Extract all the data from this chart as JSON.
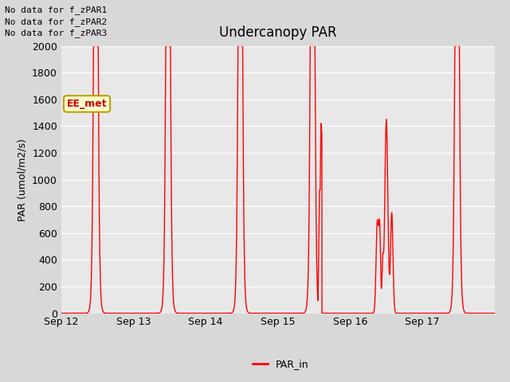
{
  "title": "Undercanopy PAR",
  "ylabel": "PAR (umol/m2/s)",
  "ylim": [
    0,
    2000
  ],
  "yticks": [
    0,
    200,
    400,
    600,
    800,
    1000,
    1200,
    1400,
    1600,
    1800,
    2000
  ],
  "xtick_labels": [
    "Sep 12",
    "Sep 13",
    "Sep 14",
    "Sep 15",
    "Sep 16",
    "Sep 17"
  ],
  "line_color": "#ff0000",
  "line_label": "PAR_in",
  "bg_color": "#d8d8d8",
  "plot_bg_color": "#e8e8e8",
  "annotation_lines": [
    "No data for f_zPAR1",
    "No data for f_zPAR2",
    "No data for f_zPAR3"
  ],
  "ee_met_label": "EE_met",
  "ee_met_bg": "#ffffcc",
  "ee_met_border": "#b8a000"
}
